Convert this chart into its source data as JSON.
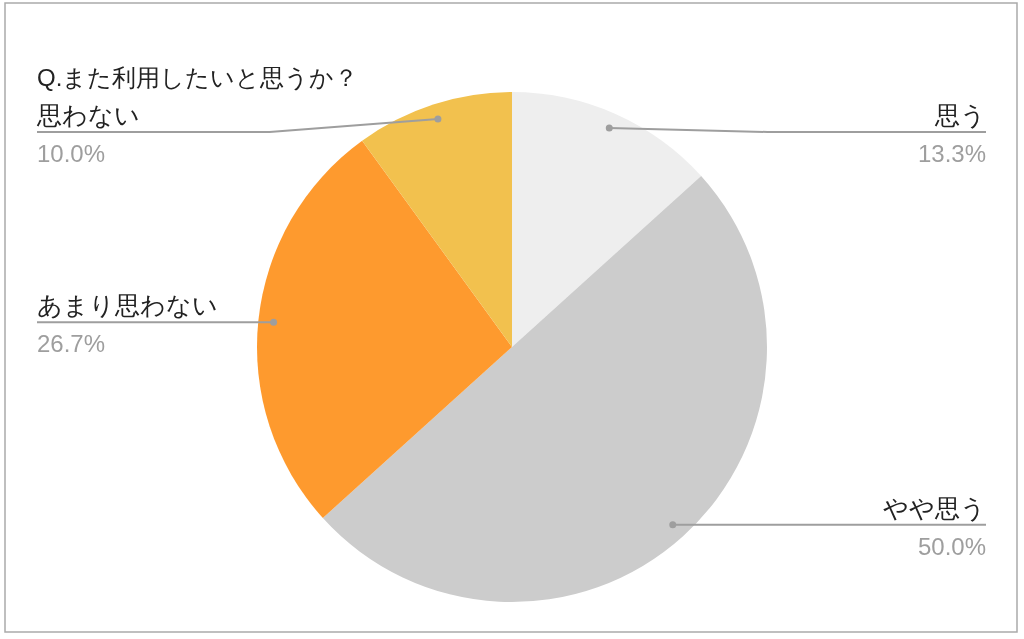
{
  "chart_data": {
    "type": "pie",
    "title": "Q.また利用したいと思うか？",
    "categories": [
      "思う",
      "やや思う",
      "あまり思わない",
      "思わない"
    ],
    "values": [
      13.3,
      50.0,
      26.7,
      10.0
    ],
    "colors": [
      "#eeeeee",
      "#cccccc",
      "#fe9a2e",
      "#f2c14e"
    ],
    "value_labels": [
      "13.3%",
      "50.0%",
      "26.7%",
      "10.0%"
    ]
  }
}
